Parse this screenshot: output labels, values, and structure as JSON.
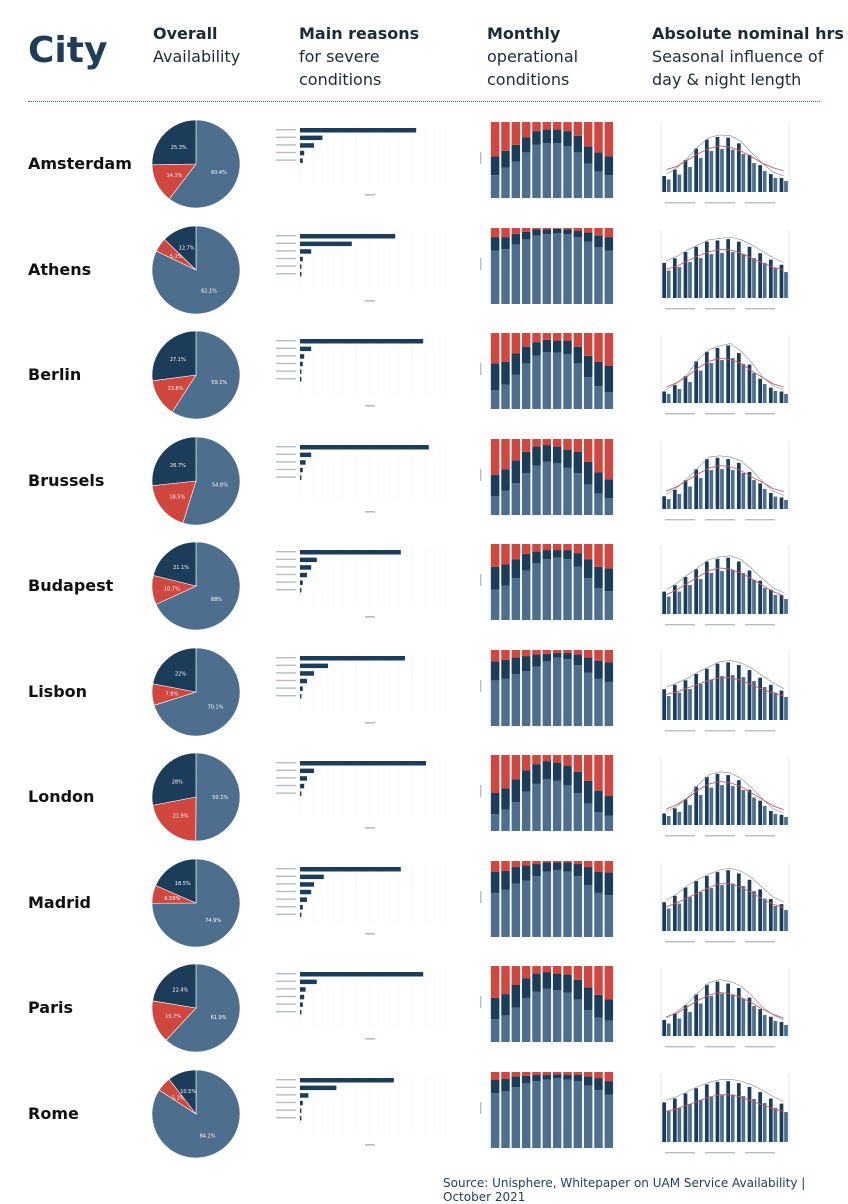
{
  "header": {
    "city": "City",
    "cols": [
      {
        "title": "Overall",
        "sub": "Availability"
      },
      {
        "title": "Main reasons",
        "sub": "for severe\nconditions"
      },
      {
        "title": "Monthly",
        "sub": "operational\nconditions"
      },
      {
        "title": "Absolute nominal hrs",
        "sub": "Seasonal influence of\nday & night length"
      }
    ]
  },
  "colors": {
    "good": "#4e6e8e",
    "moderate": "#1b3d5a",
    "severe": "#d0473f",
    "line1": "#c85a64",
    "line2": "#7a8a9a"
  },
  "chart_data": {
    "type": "pie",
    "pie_legend_order": [
      "good",
      "severe",
      "moderate"
    ],
    "cities": [
      {
        "name": "Amsterdam",
        "pie": [
          60.4,
          14.3,
          25.3
        ],
        "labels": [
          "60.4%",
          "14.3%",
          "25.3%"
        ],
        "reasons": [
          83,
          16,
          10,
          3,
          2
        ],
        "monthly_good": [
          30,
          40,
          48,
          60,
          70,
          72,
          72,
          68,
          60,
          45,
          35,
          30
        ],
        "monthly_mod": [
          25,
          22,
          22,
          20,
          18,
          18,
          18,
          20,
          22,
          23,
          25,
          25
        ],
        "dn_bars": [
          25,
          35,
          50,
          68,
          82,
          86,
          85,
          76,
          58,
          42,
          28,
          22
        ],
        "dn_line": [
          35,
          40,
          50,
          60,
          68,
          72,
          70,
          64,
          55,
          45,
          38,
          33
        ]
      },
      {
        "name": "Athens",
        "pie": [
          82.1,
          5.2,
          12.7
        ],
        "labels": [
          "82.1%",
          "5.2%",
          "12.7%"
        ],
        "reasons": [
          68,
          37,
          8,
          2,
          1,
          1
        ],
        "monthly_good": [
          70,
          72,
          78,
          85,
          90,
          92,
          93,
          92,
          88,
          82,
          75,
          70
        ],
        "monthly_mod": [
          18,
          16,
          14,
          10,
          8,
          6,
          6,
          6,
          8,
          12,
          15,
          18
        ],
        "dn_bars": [
          55,
          62,
          72,
          80,
          88,
          90,
          92,
          88,
          80,
          70,
          60,
          52
        ],
        "dn_line": [
          45,
          50,
          58,
          66,
          72,
          76,
          75,
          70,
          62,
          55,
          48,
          44
        ]
      },
      {
        "name": "Berlin",
        "pie": [
          59.1,
          13.8,
          27.1
        ],
        "labels": [
          "59.1%",
          "13.8%",
          "27.1%"
        ],
        "reasons": [
          88,
          8,
          3,
          2,
          1,
          1
        ],
        "monthly_good": [
          25,
          32,
          45,
          60,
          70,
          75,
          74,
          72,
          60,
          42,
          30,
          22
        ],
        "monthly_mod": [
          35,
          30,
          28,
          22,
          18,
          16,
          16,
          18,
          22,
          28,
          32,
          35
        ],
        "dn_bars": [
          18,
          28,
          42,
          65,
          80,
          86,
          90,
          78,
          60,
          38,
          24,
          18
        ],
        "dn_line": [
          25,
          32,
          42,
          55,
          65,
          70,
          68,
          62,
          50,
          40,
          30,
          25
        ]
      },
      {
        "name": "Brussels",
        "pie": [
          54.8,
          18.5,
          26.7
        ],
        "labels": [
          "54.8%",
          "18.5%",
          "26.7%"
        ],
        "reasons": [
          92,
          8,
          4,
          2,
          1
        ],
        "monthly_good": [
          25,
          32,
          42,
          55,
          65,
          70,
          68,
          62,
          55,
          40,
          28,
          22
        ],
        "monthly_mod": [
          28,
          28,
          30,
          28,
          25,
          22,
          22,
          24,
          28,
          30,
          28,
          25
        ],
        "dn_bars": [
          20,
          30,
          45,
          62,
          78,
          80,
          78,
          72,
          58,
          40,
          25,
          18
        ],
        "dn_line": [
          28,
          35,
          45,
          55,
          64,
          68,
          66,
          60,
          50,
          42,
          32,
          27
        ]
      },
      {
        "name": "Budapest",
        "pie": [
          68.0,
          10.7,
          21.1
        ],
        "labels": [
          "68%",
          "10.7%",
          "21.1%"
        ],
        "reasons": [
          72,
          12,
          8,
          5,
          2,
          1
        ],
        "monthly_good": [
          40,
          45,
          55,
          65,
          75,
          80,
          82,
          80,
          70,
          55,
          42,
          38
        ],
        "monthly_mod": [
          30,
          28,
          25,
          22,
          15,
          12,
          10,
          12,
          18,
          25,
          28,
          30
        ],
        "dn_bars": [
          35,
          45,
          58,
          70,
          82,
          86,
          88,
          82,
          68,
          52,
          38,
          30
        ],
        "dn_line": [
          30,
          38,
          48,
          58,
          68,
          72,
          70,
          64,
          55,
          45,
          35,
          28
        ]
      },
      {
        "name": "Lisbon",
        "pie": [
          70.1,
          7.9,
          22.0
        ],
        "labels": [
          "70.1%",
          "7.9%",
          "22%"
        ],
        "reasons": [
          75,
          20,
          10,
          5,
          2,
          1
        ],
        "monthly_good": [
          60,
          62,
          68,
          72,
          78,
          85,
          90,
          88,
          80,
          70,
          62,
          58
        ],
        "monthly_mod": [
          25,
          25,
          22,
          20,
          16,
          10,
          6,
          8,
          14,
          20,
          24,
          26
        ],
        "dn_bars": [
          48,
          55,
          62,
          72,
          80,
          88,
          90,
          86,
          78,
          66,
          55,
          46
        ],
        "dn_line": [
          40,
          44,
          50,
          56,
          62,
          66,
          66,
          62,
          55,
          48,
          42,
          38
        ]
      },
      {
        "name": "London",
        "pie": [
          50.1,
          21.9,
          28.0
        ],
        "labels": [
          "50.1%",
          "21.9%",
          "28%"
        ],
        "reasons": [
          90,
          10,
          5,
          3,
          1
        ],
        "monthly_good": [
          22,
          28,
          38,
          52,
          62,
          68,
          66,
          60,
          50,
          36,
          25,
          20
        ],
        "monthly_mod": [
          28,
          28,
          30,
          28,
          26,
          24,
          24,
          26,
          28,
          30,
          28,
          26
        ],
        "dn_bars": [
          18,
          26,
          40,
          60,
          75,
          80,
          78,
          70,
          55,
          38,
          22,
          16
        ],
        "dn_line": [
          25,
          32,
          42,
          55,
          64,
          68,
          66,
          60,
          50,
          40,
          30,
          24
        ]
      },
      {
        "name": "Madrid",
        "pie": [
          74.9,
          6.59,
          18.5
        ],
        "labels": [
          "74.9%",
          "6.59%",
          "18.5%"
        ],
        "reasons": [
          72,
          17,
          10,
          8,
          5,
          2,
          1
        ],
        "monthly_good": [
          58,
          62,
          70,
          74,
          80,
          86,
          88,
          86,
          80,
          68,
          58,
          55
        ],
        "monthly_mod": [
          28,
          25,
          22,
          20,
          16,
          12,
          10,
          12,
          16,
          24,
          28,
          30
        ],
        "dn_bars": [
          45,
          55,
          68,
          78,
          86,
          92,
          95,
          90,
          80,
          65,
          50,
          42
        ],
        "dn_line": [
          38,
          44,
          52,
          60,
          68,
          74,
          74,
          68,
          60,
          50,
          42,
          36
        ]
      },
      {
        "name": "Paris",
        "pie": [
          61.9,
          15.7,
          22.4
        ],
        "labels": [
          "61.9%",
          "15.7%",
          "22.4%"
        ],
        "reasons": [
          88,
          12,
          4,
          3,
          2,
          1
        ],
        "monthly_good": [
          30,
          35,
          45,
          58,
          66,
          70,
          68,
          65,
          56,
          42,
          32,
          28
        ],
        "monthly_mod": [
          28,
          28,
          30,
          26,
          24,
          22,
          22,
          24,
          26,
          30,
          30,
          28
        ],
        "dn_bars": [
          25,
          35,
          48,
          65,
          80,
          85,
          82,
          75,
          60,
          42,
          30,
          22
        ],
        "dn_line": [
          30,
          36,
          46,
          56,
          64,
          68,
          66,
          60,
          52,
          42,
          34,
          28
        ]
      },
      {
        "name": "Rome",
        "pie": [
          84.2,
          5.3,
          10.5
        ],
        "labels": [
          "84.2%",
          "5.3%",
          "10.5%"
        ],
        "reasons": [
          67,
          26,
          6,
          2,
          1,
          1
        ],
        "monthly_good": [
          72,
          75,
          80,
          85,
          88,
          90,
          92,
          90,
          88,
          82,
          76,
          70
        ],
        "monthly_mod": [
          18,
          16,
          14,
          10,
          8,
          6,
          5,
          6,
          8,
          12,
          16,
          18
        ],
        "dn_bars": [
          62,
          68,
          76,
          84,
          90,
          94,
          95,
          92,
          86,
          78,
          68,
          60
        ],
        "dn_line": [
          48,
          52,
          58,
          64,
          70,
          74,
          74,
          70,
          64,
          58,
          52,
          48
        ]
      }
    ]
  },
  "footer": {
    "source": "Source:  Unisphere, Whitepaper on UAM Service Availability",
    "date": "October 2021"
  }
}
